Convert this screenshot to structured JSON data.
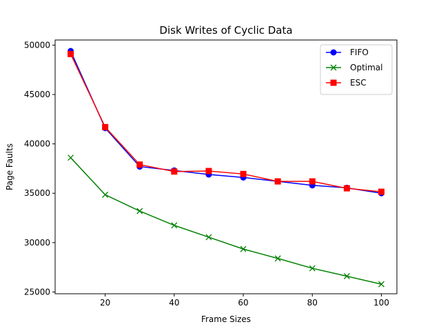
{
  "chart_data": {
    "type": "line",
    "title": "Disk Writes of Cyclic Data",
    "xlabel": "Frame Sizes",
    "ylabel": "Page Faults",
    "x": [
      10,
      20,
      30,
      40,
      50,
      60,
      70,
      80,
      90,
      100
    ],
    "xlim": [
      5.5,
      104.5
    ],
    "ylim": [
      24820,
      50520
    ],
    "xticks": [
      20,
      40,
      60,
      80,
      100
    ],
    "yticks": [
      25000,
      30000,
      35000,
      40000,
      45000,
      50000
    ],
    "grid": false,
    "legend_position": "top-right",
    "series": [
      {
        "name": "FIFO",
        "color": "#0000ff",
        "marker": "circle",
        "values": [
          49400,
          41600,
          37700,
          37300,
          36900,
          36600,
          36200,
          35800,
          35550,
          35000
        ]
      },
      {
        "name": "Optimal",
        "color": "#008000",
        "marker": "x",
        "values": [
          38600,
          34850,
          33200,
          31750,
          30550,
          29350,
          28400,
          27400,
          26600,
          25790
        ]
      },
      {
        "name": "ESC",
        "color": "#ff0000",
        "marker": "square",
        "values": [
          49100,
          41700,
          37900,
          37200,
          37250,
          36950,
          36200,
          36200,
          35500,
          35150
        ]
      }
    ]
  }
}
